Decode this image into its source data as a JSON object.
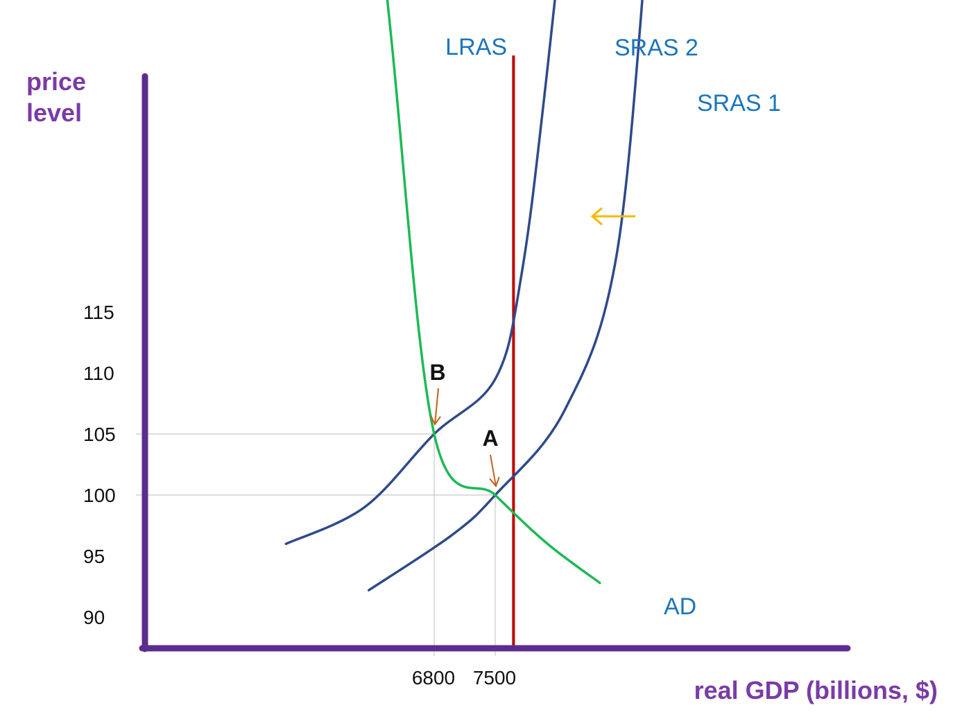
{
  "chart_data": {
    "type": "line",
    "title": "",
    "xlabel": "real GDP (billions, $)",
    "ylabel": "price level",
    "yticks": [
      "115",
      "110",
      "105",
      "100",
      "95",
      "90"
    ],
    "xticks": [
      "6800",
      "7500"
    ],
    "grid": false,
    "series": [
      {
        "name": "LRAS",
        "kind": "vertical-line",
        "x": 7710,
        "color": "#c00000"
      },
      {
        "name": "SRAS 2",
        "kind": "supply",
        "color": "#2e4a8b",
        "points": [
          [
            5100,
            96.0
          ],
          [
            6000,
            99.0
          ],
          [
            6800,
            105.0
          ],
          [
            7500,
            109.5
          ],
          [
            7800,
            118.0
          ],
          [
            8100,
            135.0
          ],
          [
            8700,
            175.0
          ]
        ]
      },
      {
        "name": "SRAS 1",
        "kind": "supply",
        "color": "#2e4a8b",
        "points": [
          [
            6050,
            92.2
          ],
          [
            7000,
            96.7
          ],
          [
            7500,
            100.0
          ],
          [
            8300,
            107.0
          ],
          [
            8900,
            120.0
          ],
          [
            9300,
            150.0
          ],
          [
            9600,
            170.0
          ]
        ]
      },
      {
        "name": "AD",
        "kind": "demand",
        "color": "#1db954",
        "points": [
          [
            5850,
            170.0
          ],
          [
            6300,
            138.0
          ],
          [
            6800,
            105.0
          ],
          [
            7500,
            100.0
          ],
          [
            8100,
            96.0
          ],
          [
            8700,
            92.8
          ]
        ]
      }
    ],
    "points": [
      {
        "label": "A",
        "x": 7500,
        "y": 100
      },
      {
        "label": "B",
        "x": 6800,
        "y": 105
      }
    ],
    "annotations": {
      "shift_arrow_color": "#f5b800",
      "marker_arrow_color": "#c0621a",
      "axis_color": "#5b2d8e",
      "curve_label_color": "#1b75bb",
      "guide_line_color": "#c8c8c8"
    }
  }
}
